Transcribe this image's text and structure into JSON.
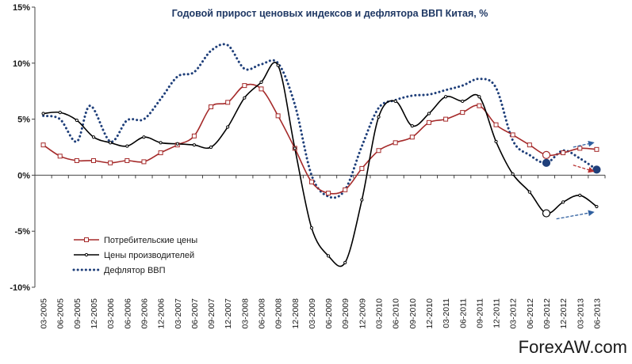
{
  "chart_data": {
    "type": "line",
    "title": "Годовой прирост ценовых индексов и дефлятора ВВП Китая, %",
    "xlabel": "",
    "ylabel": "",
    "ylim": [
      -10,
      15
    ],
    "yticks": [
      15,
      10,
      5,
      0,
      -5,
      -10
    ],
    "ytick_labels": [
      "15%",
      "10%",
      "5%",
      "0%",
      "-5%",
      "-10%"
    ],
    "grid": false,
    "legend_position": "bottom-left",
    "categories": [
      "03-2005",
      "06-2005",
      "09-2005",
      "12-2005",
      "03-2006",
      "06-2006",
      "09-2006",
      "12-2006",
      "03-2007",
      "06-2007",
      "09-2007",
      "12-2007",
      "03-2008",
      "06-2008",
      "09-2008",
      "12-2008",
      "03-2009",
      "06-2009",
      "09-2009",
      "12-2009",
      "03-2010",
      "06-2010",
      "09-2010",
      "12-2010",
      "03-2011",
      "06-2011",
      "09-2011",
      "12-2011",
      "03-2012",
      "06-2012",
      "09-2012",
      "12-2012",
      "03-2013",
      "06-2013"
    ],
    "series": [
      {
        "name": "Потребительские цены",
        "color": "#a52a2a",
        "style": "line-square-markers",
        "points": [
          [
            0,
            2.7
          ],
          [
            1,
            1.7
          ],
          [
            2,
            1.3
          ],
          [
            3,
            1.3
          ],
          [
            4,
            1.1
          ],
          [
            5,
            1.3
          ],
          [
            6,
            1.2
          ],
          [
            7,
            2.0
          ],
          [
            8,
            2.7
          ],
          [
            9,
            3.5
          ],
          [
            10,
            6.1
          ],
          [
            11,
            6.5
          ],
          [
            12,
            8.0
          ],
          [
            13,
            7.7
          ],
          [
            14,
            5.3
          ],
          [
            15,
            2.4
          ],
          [
            16,
            -0.6
          ],
          [
            17,
            -1.6
          ],
          [
            18,
            -1.3
          ],
          [
            19,
            0.6
          ],
          [
            20,
            2.2
          ],
          [
            21,
            2.9
          ],
          [
            22,
            3.4
          ],
          [
            23,
            4.7
          ],
          [
            24,
            5.0
          ],
          [
            25,
            5.6
          ],
          [
            26,
            6.2
          ],
          [
            27,
            4.5
          ],
          [
            28,
            3.6
          ],
          [
            29,
            2.7
          ],
          [
            30,
            1.8
          ],
          [
            31,
            2.0
          ],
          [
            32,
            2.4
          ],
          [
            33,
            2.3
          ]
        ]
      },
      {
        "name": "Цены производителей",
        "color": "#000000",
        "style": "line-circle-markers",
        "points": [
          [
            0,
            5.5
          ],
          [
            1,
            5.6
          ],
          [
            2,
            4.9
          ],
          [
            3,
            3.4
          ],
          [
            4,
            2.9
          ],
          [
            5,
            2.6
          ],
          [
            6,
            3.4
          ],
          [
            7,
            2.9
          ],
          [
            8,
            2.8
          ],
          [
            9,
            2.7
          ],
          [
            10,
            2.5
          ],
          [
            11,
            4.3
          ],
          [
            12,
            6.9
          ],
          [
            13,
            8.3
          ],
          [
            14,
            9.8
          ],
          [
            15,
            2.4
          ],
          [
            16,
            -4.7
          ],
          [
            17,
            -7.2
          ],
          [
            18,
            -7.8
          ],
          [
            19,
            -2.2
          ],
          [
            20,
            5.2
          ],
          [
            21,
            6.6
          ],
          [
            22,
            4.4
          ],
          [
            23,
            5.5
          ],
          [
            24,
            7.0
          ],
          [
            25,
            6.6
          ],
          [
            26,
            7.0
          ],
          [
            27,
            3.0
          ],
          [
            28,
            0.1
          ],
          [
            29,
            -1.5
          ],
          [
            30,
            -3.4
          ],
          [
            31,
            -2.4
          ],
          [
            32,
            -1.8
          ],
          [
            33,
            -2.8
          ]
        ]
      },
      {
        "name": "Дефлятор ВВП",
        "color": "#1f3f7a",
        "style": "dotted",
        "points": [
          [
            0,
            5.3
          ],
          [
            1,
            5.0
          ],
          [
            2,
            3.0
          ],
          [
            2.8,
            6.2
          ],
          [
            4,
            3.0
          ],
          [
            5,
            4.9
          ],
          [
            6,
            5.0
          ],
          [
            7,
            6.8
          ],
          [
            8,
            8.8
          ],
          [
            9,
            9.2
          ],
          [
            10,
            11.1
          ],
          [
            11,
            11.6
          ],
          [
            12,
            9.5
          ],
          [
            13,
            9.9
          ],
          [
            14,
            10.0
          ],
          [
            15,
            6.3
          ],
          [
            16,
            0.0
          ],
          [
            17,
            -1.9
          ],
          [
            18,
            -1.3
          ],
          [
            19,
            2.6
          ],
          [
            20,
            6.0
          ],
          [
            21,
            6.7
          ],
          [
            22,
            7.1
          ],
          [
            23,
            7.2
          ],
          [
            24,
            7.6
          ],
          [
            25,
            8.0
          ],
          [
            26,
            8.6
          ],
          [
            27,
            7.8
          ],
          [
            28,
            3.1
          ],
          [
            29,
            1.8
          ],
          [
            30,
            1.1
          ],
          [
            31,
            2.2
          ],
          [
            32,
            1.5
          ],
          [
            33,
            0.5
          ]
        ]
      }
    ],
    "highlight_points": [
      {
        "series": "Потребительские цены",
        "x": 30,
        "y": 1.8,
        "fill": "#ffffff"
      },
      {
        "series": "Цены производителей",
        "x": 30,
        "y": -3.4,
        "fill": "#ffffff"
      },
      {
        "series": "Дефлятор ВВП",
        "x": 30,
        "y": 1.1,
        "fill": "#1f3f7a"
      },
      {
        "series": "Дефлятор ВВП",
        "x": 33,
        "y": 0.5,
        "fill": "#1f3f7a"
      }
    ],
    "trend_arrows": [
      {
        "color": "#b83232",
        "style": "dashed",
        "from": [
          31.6,
          0.9
        ],
        "to": [
          32.8,
          0.35
        ]
      },
      {
        "color": "#2f5f9f",
        "style": "dashed",
        "from": [
          31.6,
          2.5
        ],
        "to": [
          32.8,
          2.9
        ]
      },
      {
        "color": "#2f5f9f",
        "style": "dashed",
        "from": [
          30.6,
          -3.9
        ],
        "to": [
          32.8,
          -3.3
        ]
      }
    ]
  },
  "watermark": "ForexAW.com"
}
